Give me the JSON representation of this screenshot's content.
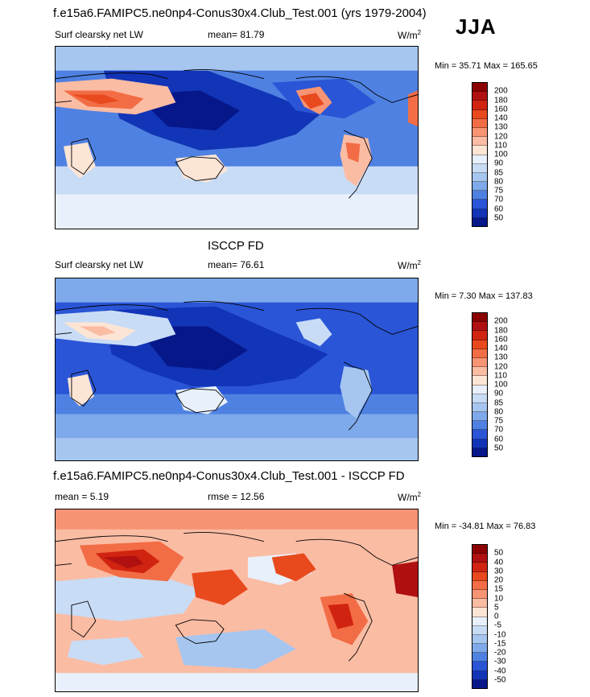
{
  "main_title": "f.e15a6.FAMIPC5.ne0np4-Conus30x4.Club_Test.001 (yrs 1979-2004)",
  "season": "JJA",
  "panels": [
    {
      "title": "",
      "left_label": "Surf clearsky net LW",
      "center_label": "mean=  81.79",
      "units": "W/m",
      "units_exp": "2",
      "minmax": "Min =  35.71 Max = 165.65",
      "levels": [
        "200",
        "180",
        "160",
        "140",
        "130",
        "120",
        "110",
        "100",
        "90",
        "85",
        "80",
        "75",
        "70",
        "60",
        "50"
      ],
      "colors": [
        "#8b0000",
        "#b01010",
        "#d12410",
        "#e84a1e",
        "#f26d45",
        "#f79474",
        "#fbbca4",
        "#fde5d6",
        "#e8f0fb",
        "#c8dcf6",
        "#a6c6f0",
        "#7ea9ea",
        "#4f81e2",
        "#2a55d6",
        "#1234b6",
        "#06178a"
      ]
    },
    {
      "title": "ISCCP FD",
      "left_label": "Surf clearsky net LW",
      "center_label": "mean=  76.61",
      "units": "W/m",
      "units_exp": "2",
      "minmax": "Min =   7.30 Max = 137.83",
      "levels": [
        "200",
        "180",
        "160",
        "140",
        "130",
        "120",
        "110",
        "100",
        "90",
        "85",
        "80",
        "75",
        "70",
        "60",
        "50"
      ],
      "colors": [
        "#8b0000",
        "#b01010",
        "#d12410",
        "#e84a1e",
        "#f26d45",
        "#f79474",
        "#fbbca4",
        "#fde5d6",
        "#e8f0fb",
        "#c8dcf6",
        "#a6c6f0",
        "#7ea9ea",
        "#4f81e2",
        "#2a55d6",
        "#1234b6",
        "#06178a"
      ]
    },
    {
      "title": "f.e15a6.FAMIPC5.ne0np4-Conus30x4.Club_Test.001 - ISCCP FD",
      "left_label": "mean =   5.19",
      "center_label": "rmse =  12.56",
      "units": "W/m",
      "units_exp": "2",
      "minmax": "Min = -34.81 Max =  76.83",
      "levels": [
        "50",
        "40",
        "30",
        "20",
        "15",
        "10",
        "5",
        "0",
        "-5",
        "-10",
        "-15",
        "-20",
        "-30",
        "-40",
        "-50"
      ],
      "colors": [
        "#8b0000",
        "#b01010",
        "#d12410",
        "#e84a1e",
        "#f26d45",
        "#f79474",
        "#fbbca4",
        "#fde5d6",
        "#e8f0fb",
        "#c8dcf6",
        "#a6c6f0",
        "#7ea9ea",
        "#4f81e2",
        "#2a55d6",
        "#1234b6",
        "#06178a"
      ]
    }
  ]
}
